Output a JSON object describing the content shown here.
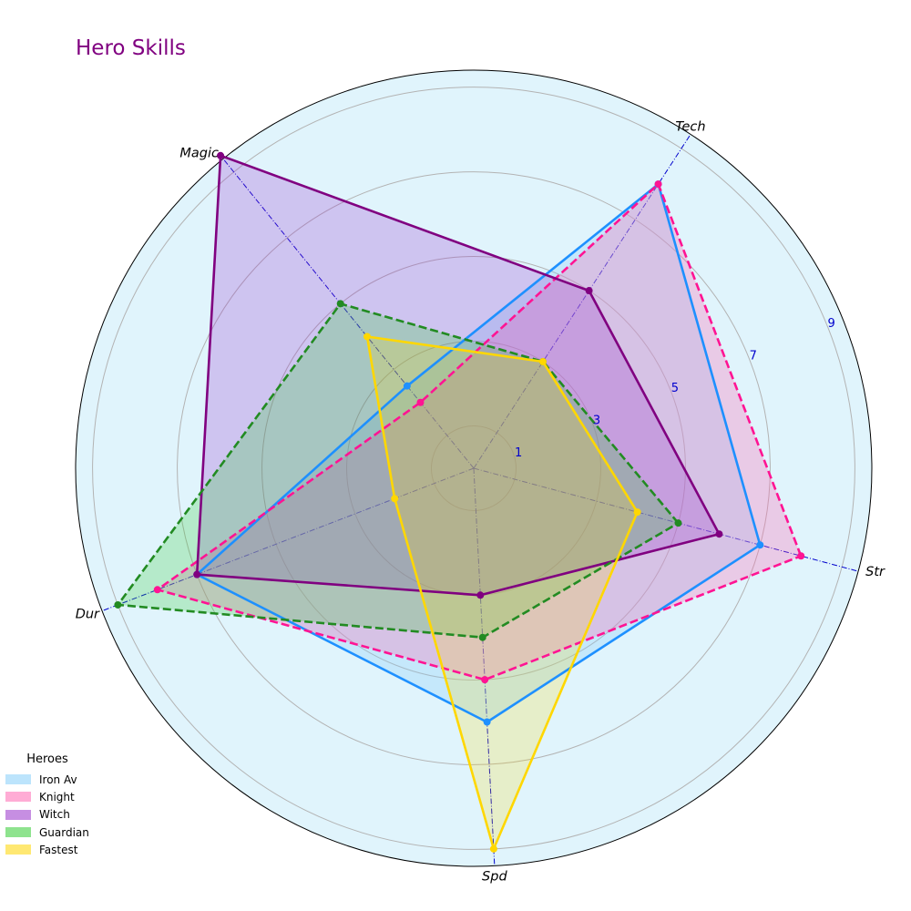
{
  "chart_data": {
    "type": "radar",
    "title": "Hero Skills",
    "axes": [
      "Str",
      "Tech",
      "Magic",
      "Dur",
      "Spd"
    ],
    "r_ticks": [
      "1",
      "3",
      "5",
      "7",
      "9"
    ],
    "r_max": 9.4,
    "legend_title": "Heroes",
    "series": [
      {
        "name": "Iron Av",
        "values": [
          7,
          8,
          2.5,
          7,
          6
        ],
        "color": "#1e90ff",
        "dashed": false,
        "fill_color": "#87cefa",
        "fill_opacity": 0.3
      },
      {
        "name": "Knight",
        "values": [
          8,
          8,
          2,
          8,
          5
        ],
        "color": "#ff1493",
        "dashed": true,
        "fill_color": "#ff69b4",
        "fill_opacity": 0.3
      },
      {
        "name": "Witch",
        "values": [
          6,
          5,
          9.5,
          7,
          3
        ],
        "color": "#800080",
        "dashed": false,
        "fill_color": "#9932cc",
        "fill_opacity": 0.25
      },
      {
        "name": "Guardian",
        "values": [
          5,
          3,
          5,
          9,
          4
        ],
        "color": "#228b22",
        "dashed": true,
        "fill_color": "#32cd32",
        "fill_opacity": 0.25
      },
      {
        "name": "Fastest",
        "values": [
          4,
          3,
          4,
          2,
          9
        ],
        "color": "#ffd700",
        "dashed": false,
        "fill_color": "#ffd700",
        "fill_opacity": 0.2
      }
    ]
  }
}
